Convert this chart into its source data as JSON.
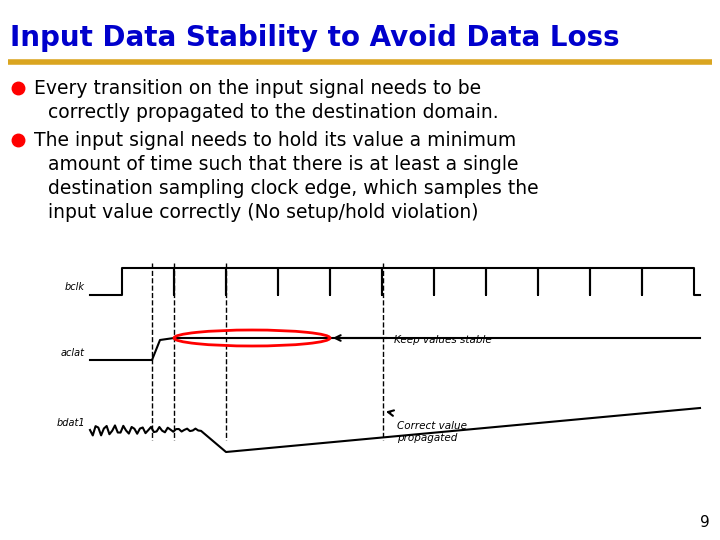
{
  "title": "Input Data Stability to Avoid Data Loss",
  "title_color": "#0000CC",
  "title_fontsize": 20,
  "separator_color": "#DAA520",
  "bg_color": "#FFFFFF",
  "bullet_color": "#FF0000",
  "text_color": "#000000",
  "text_fontsize": 13.5,
  "bullet1_line1": "Every transition on the input signal needs to be",
  "bullet1_line2": "correctly propagated to the destination domain.",
  "bullet2_line1": "The input signal needs to hold its value a minimum",
  "bullet2_line2": "amount of time such that there is at least a single",
  "bullet2_line3": "destination sampling clock edge, which samples the",
  "bullet2_line4": "input value correctly (No setup/hold violation)",
  "page_number": "9",
  "label_bclk": "bclk",
  "label_aclat": "aclat",
  "label_bdat1": "bdat1",
  "annotation1": "Keep values stable",
  "annotation2": "Correct value\npropagated"
}
